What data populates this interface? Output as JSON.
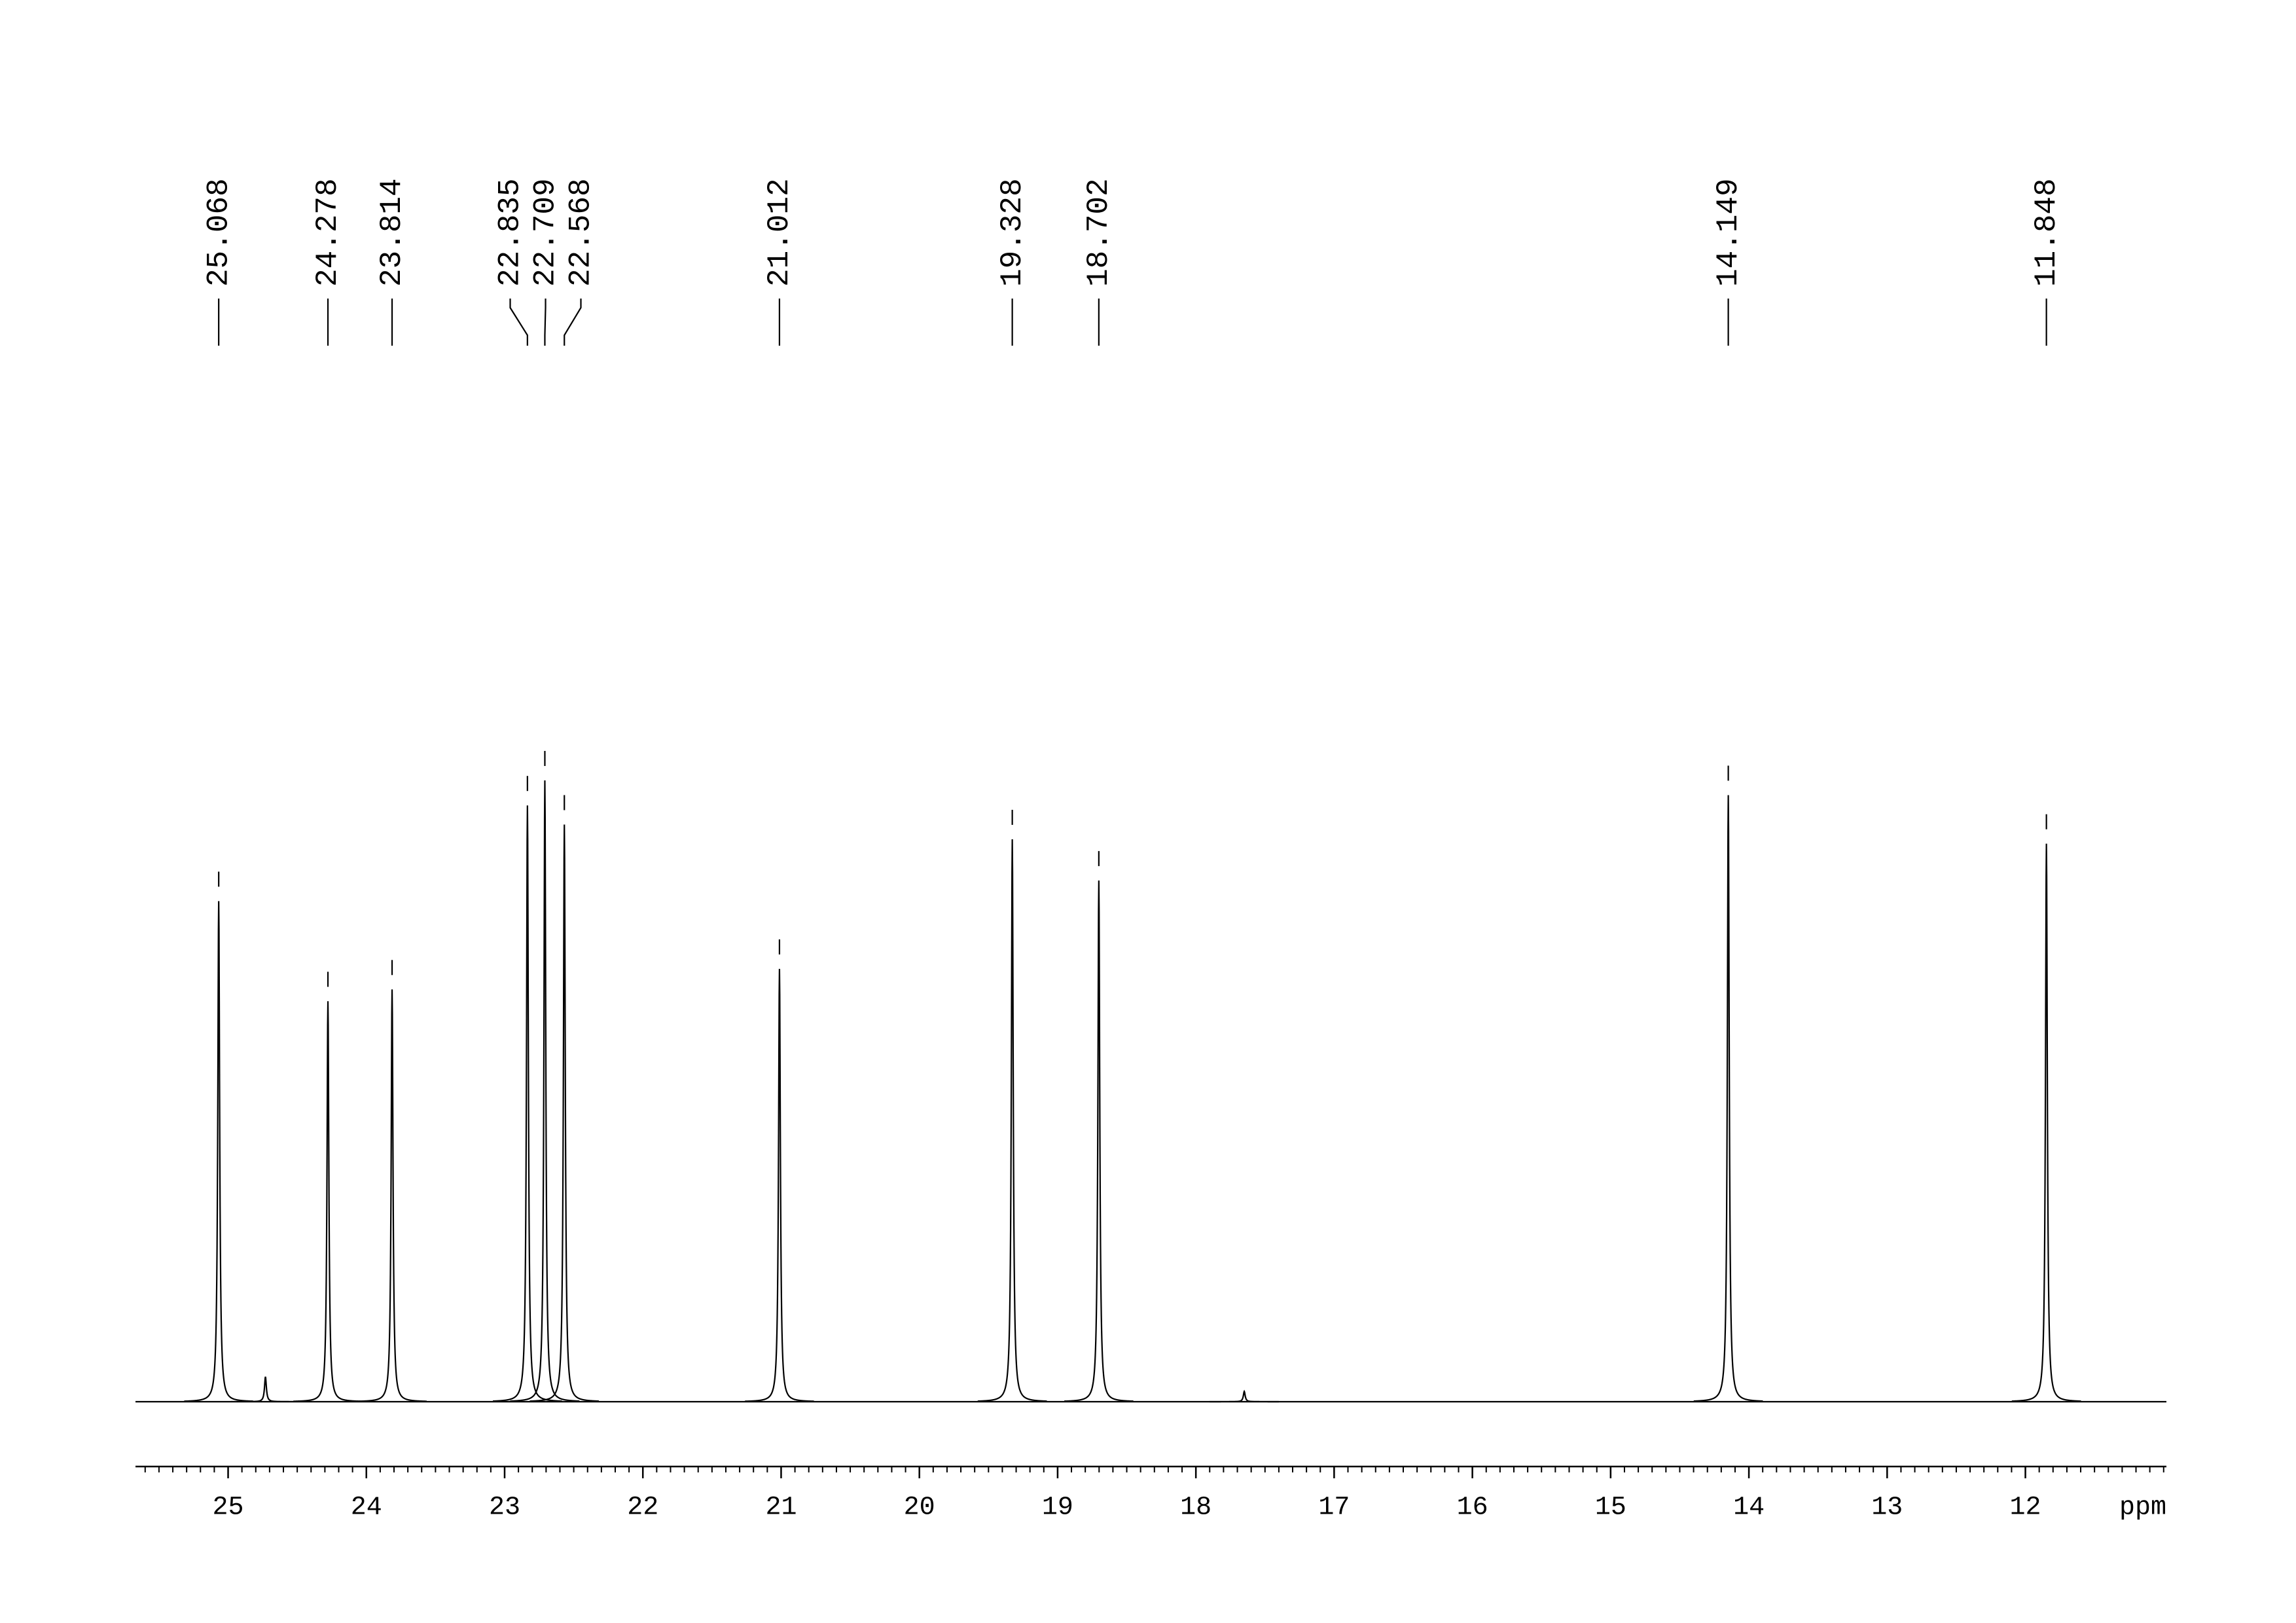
{
  "chart_data": {
    "type": "nmr",
    "x_label": "ppm",
    "xlim": [
      25.67,
      10.98
    ],
    "xticks": [
      25,
      24,
      23,
      22,
      21,
      20,
      19,
      18,
      17,
      16,
      15,
      14,
      13,
      12
    ],
    "minor_tick_interval": 0.1,
    "ylim": [
      0,
      450
    ],
    "color": "#000000",
    "peaks": {
      "x": [
        25.068,
        24.278,
        23.814,
        22.835,
        22.709,
        22.568,
        21.012,
        19.328,
        18.702,
        14.149,
        11.848
      ],
      "values": [
        340,
        272,
        280,
        405,
        422,
        392,
        294,
        382,
        354,
        412,
        379
      ]
    },
    "minor_peaks": {
      "x": [
        24.73,
        17.65
      ],
      "values": [
        17,
        7
      ]
    }
  }
}
